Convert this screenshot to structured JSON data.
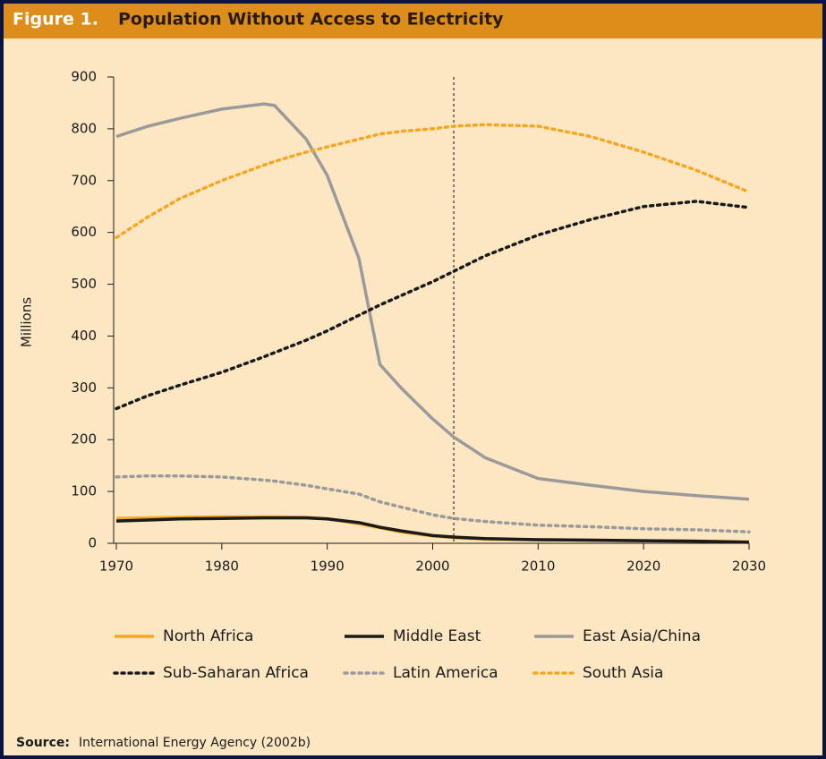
{
  "figure_label": "Figure 1.",
  "source_label": "Source:",
  "source": "International Energy Agency (2002b)",
  "chart_data": {
    "type": "line",
    "title": "Population Without Access to Electricity",
    "y_label": "Millions",
    "x": [
      1970,
      1973,
      1976,
      1980,
      1984,
      1985,
      1988,
      1990,
      1993,
      1995,
      1997,
      2000,
      2002,
      2005,
      2010,
      2015,
      2020,
      2025,
      2030
    ],
    "xlim": [
      1970,
      2030
    ],
    "xticks": [
      1970,
      1980,
      1990,
      2000,
      2010,
      2020,
      2030
    ],
    "ylim": [
      0,
      900
    ],
    "yticks": [
      0,
      100,
      200,
      300,
      400,
      500,
      600,
      700,
      800,
      900
    ],
    "vline": 2002,
    "series": [
      {
        "name": "North Africa",
        "color": "#f5a623",
        "style": "solid",
        "values": [
          48,
          49,
          50,
          51,
          51,
          51,
          50,
          47,
          38,
          30,
          22,
          14,
          11,
          8,
          7,
          6,
          5,
          4,
          3
        ]
      },
      {
        "name": "Middle East",
        "color": "#1a1a1a",
        "style": "solid",
        "values": [
          43,
          45,
          47,
          48,
          49,
          49,
          49,
          47,
          40,
          31,
          24,
          15,
          12,
          9,
          7,
          6,
          5,
          4,
          2
        ]
      },
      {
        "name": "East Asia/China",
        "color": "#9a9a9a",
        "style": "solid",
        "values": [
          785,
          805,
          820,
          838,
          848,
          845,
          780,
          710,
          550,
          345,
          300,
          240,
          205,
          165,
          125,
          112,
          100,
          92,
          85
        ]
      },
      {
        "name": "Sub-Saharan Africa",
        "color": "#1a1a1a",
        "style": "dotted",
        "values": [
          260,
          285,
          305,
          330,
          360,
          368,
          392,
          410,
          440,
          460,
          478,
          505,
          525,
          555,
          595,
          625,
          650,
          660,
          648
        ]
      },
      {
        "name": "Latin America",
        "color": "#9a9a9a",
        "style": "dotted",
        "values": [
          128,
          130,
          130,
          128,
          122,
          120,
          112,
          105,
          95,
          80,
          70,
          55,
          48,
          42,
          35,
          32,
          28,
          26,
          22
        ]
      },
      {
        "name": "South Asia",
        "color": "#f5a623",
        "style": "dotted",
        "values": [
          590,
          630,
          665,
          700,
          730,
          737,
          755,
          765,
          780,
          790,
          795,
          800,
          805,
          808,
          805,
          785,
          755,
          720,
          678
        ]
      }
    ]
  }
}
